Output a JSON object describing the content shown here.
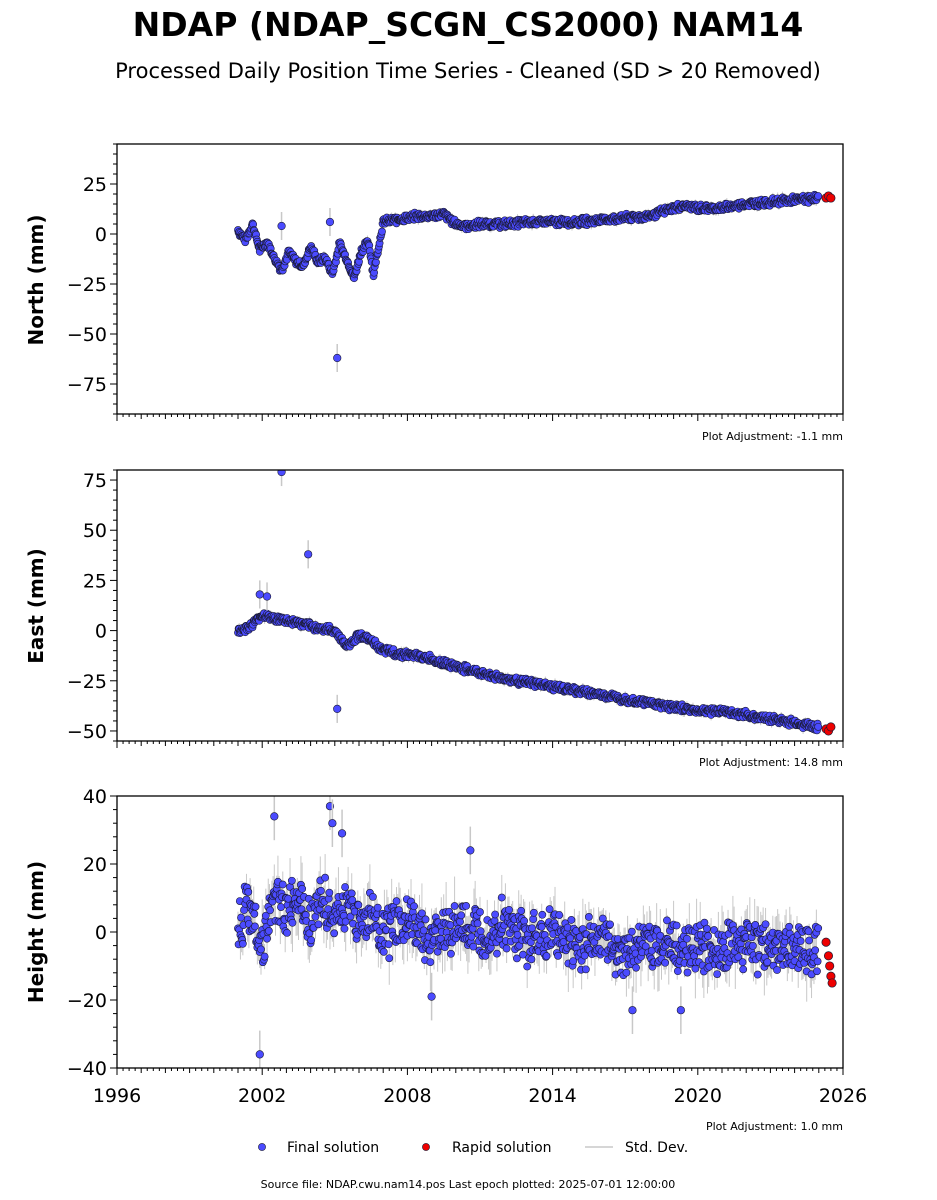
{
  "title": "NDAP (NDAP_SCGN_CS2000) NAM14",
  "subtitle": "Processed Daily Position Time Series - Cleaned (SD > 20 Removed)",
  "colors": {
    "final": "#4b4bff",
    "rapid": "#ee0000",
    "stddev": "#c8c8c8",
    "edge": "#1a1a33"
  },
  "legend": {
    "final": "Final solution",
    "rapid": "Rapid solution",
    "stddev": "Std. Dev."
  },
  "footer": "Source file: NDAP.cwu.nam14.pos  Last epoch plotted: 2025-07-01 12:00:00",
  "chart_data": [
    {
      "type": "scatter",
      "ylabel": "North (mm)",
      "adjustment": "Plot Adjustment: -1.1 mm",
      "xlim": [
        1996,
        2026
      ],
      "ylim": [
        -90,
        45
      ],
      "yticks": [
        25,
        0,
        -25,
        -50,
        -75
      ],
      "yticklabels": [
        "25",
        "0",
        "−25",
        "−50",
        "−75"
      ],
      "xtick_labels_shown": false,
      "series": [
        {
          "name": "Final solution",
          "x": [
            2001.0,
            2001.3,
            2001.6,
            2001.9,
            2002.2,
            2002.5,
            2002.8,
            2003.1,
            2003.4,
            2003.7,
            2004.0,
            2004.3,
            2004.6,
            2004.9,
            2005.2,
            2005.5,
            2005.8,
            2006.1,
            2006.4,
            2006.6,
            2007.0,
            2007.5,
            2008.0,
            2008.5,
            2009.0,
            2009.5,
            2010.0,
            2010.5,
            2011.0,
            2012.0,
            2013.0,
            2014.0,
            2015.0,
            2016.0,
            2017.0,
            2018.0,
            2019.0,
            2019.5,
            2020.0,
            2021.0,
            2022.0,
            2023.0,
            2024.0,
            2025.0
          ],
          "y": [
            2,
            -3,
            5,
            -8,
            -4,
            -12,
            -18,
            -9,
            -14,
            -16,
            -6,
            -14,
            -12,
            -20,
            -5,
            -13,
            -22,
            -8,
            -4,
            -20,
            6,
            7,
            8,
            9,
            9,
            10,
            5,
            4,
            5,
            5,
            6,
            6,
            6,
            7,
            8,
            9,
            13,
            14,
            13,
            13,
            15,
            16,
            17,
            18
          ]
        },
        {
          "name": "Final solution (outliers)",
          "x": [
            2002.8,
            2004.8,
            2005.1
          ],
          "y": [
            4,
            6,
            -62
          ]
        },
        {
          "name": "Rapid solution",
          "x": [
            2025.3,
            2025.4,
            2025.5
          ],
          "y": [
            18,
            19,
            18
          ]
        }
      ]
    },
    {
      "type": "scatter",
      "ylabel": "East (mm)",
      "adjustment": "Plot Adjustment: 14.8 mm",
      "xlim": [
        1996,
        2026
      ],
      "ylim": [
        -55,
        80
      ],
      "yticks": [
        75,
        50,
        25,
        0,
        -25,
        -50
      ],
      "yticklabels": [
        "75",
        "50",
        "25",
        "0",
        "−25",
        "−50"
      ],
      "xtick_labels_shown": false,
      "series": [
        {
          "name": "Final solution",
          "x": [
            2001.0,
            2001.5,
            2002.0,
            2002.5,
            2003.0,
            2003.5,
            2004.0,
            2004.5,
            2005.0,
            2005.5,
            2006.0,
            2006.5,
            2007.0,
            2008.0,
            2009.0,
            2010.0,
            2011.0,
            2012.0,
            2013.0,
            2014.0,
            2015.0,
            2016.0,
            2017.0,
            2018.0,
            2019.0,
            2020.0,
            2021.0,
            2022.0,
            2023.0,
            2024.0,
            2025.0
          ],
          "y": [
            0,
            2,
            8,
            6,
            5,
            4,
            2,
            1,
            0,
            -8,
            -2,
            -5,
            -10,
            -12,
            -14,
            -18,
            -21,
            -24,
            -26,
            -28,
            -30,
            -32,
            -34,
            -36,
            -38,
            -40,
            -40,
            -42,
            -44,
            -46,
            -48
          ]
        },
        {
          "name": "Final solution (outliers)",
          "x": [
            2002.8,
            2003.9,
            2005.1,
            2001.9,
            2002.2
          ],
          "y": [
            79,
            38,
            -39,
            18,
            17
          ]
        },
        {
          "name": "Rapid solution",
          "x": [
            2025.3,
            2025.4,
            2025.5
          ],
          "y": [
            -49,
            -50,
            -48
          ]
        }
      ]
    },
    {
      "type": "scatter",
      "ylabel": "Height (mm)",
      "adjustment": "Plot Adjustment: 1.0 mm",
      "xlim": [
        1996,
        2026
      ],
      "ylim": [
        -40,
        40
      ],
      "yticks": [
        40,
        20,
        0,
        -20,
        -40
      ],
      "yticklabels": [
        "40",
        "20",
        "0",
        "−20",
        "−40"
      ],
      "xticks": [
        1996,
        2002,
        2008,
        2014,
        2020,
        2026
      ],
      "xtick_labels_shown": true,
      "series": [
        {
          "name": "Final solution",
          "x": [
            2001.0,
            2001.5,
            2002.0,
            2002.5,
            2003.0,
            2003.5,
            2004.0,
            2004.5,
            2005.0,
            2005.5,
            2006.0,
            2006.5,
            2007.0,
            2008.0,
            2009.0,
            2010.0,
            2011.0,
            2012.0,
            2013.0,
            2014.0,
            2015.0,
            2016.0,
            2017.0,
            2018.0,
            2019.0,
            2020.0,
            2021.0,
            2022.0,
            2023.0,
            2024.0,
            2025.0
          ],
          "y": [
            2,
            8,
            -5,
            10,
            6,
            12,
            4,
            9,
            3,
            10,
            2,
            5,
            0,
            3,
            -2,
            1,
            -1,
            2,
            -3,
            0,
            -4,
            -2,
            -6,
            -3,
            -5,
            -4,
            -6,
            -3,
            -5,
            -4,
            -6
          ],
          "spread": 9
        },
        {
          "name": "Final solution (outliers)",
          "x": [
            2001.9,
            2002.5,
            2004.8,
            2004.9,
            2005.3,
            2010.6,
            2017.3,
            2019.3,
            2009.0
          ],
          "y": [
            -36,
            34,
            37,
            32,
            29,
            24,
            -23,
            -23,
            -19
          ]
        },
        {
          "name": "Rapid solution",
          "x": [
            2025.3,
            2025.4,
            2025.45,
            2025.5,
            2025.55
          ],
          "y": [
            -3,
            -7,
            -10,
            -13,
            -15
          ]
        }
      ]
    }
  ]
}
